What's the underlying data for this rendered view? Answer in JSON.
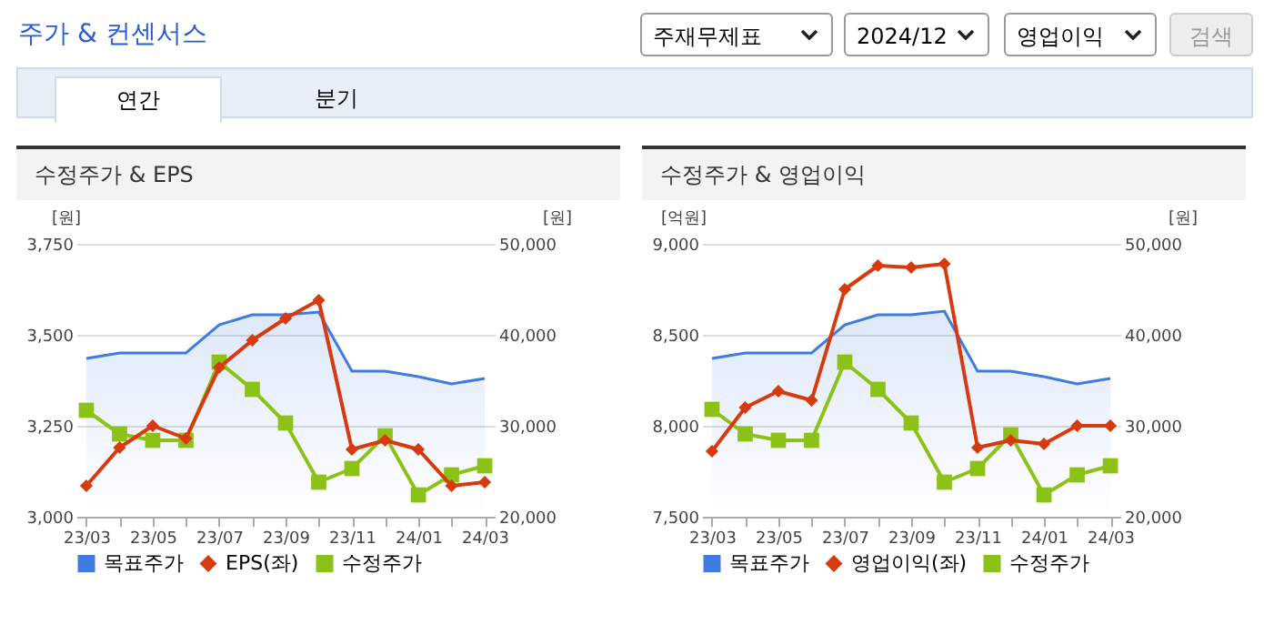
{
  "chart_data": [
    {
      "type": "other",
      "title": "주가 & 컨센서스",
      "annotations": [
        "주재무제표",
        "2024/12",
        "영업이익",
        "검색",
        "연간",
        "분기"
      ]
    },
    {
      "type": "line",
      "title": "수정주가 & EPS",
      "ylabel": "[원]",
      "y2label": "[원]",
      "categories": [
        "23/03",
        null,
        "23/05",
        null,
        "23/07",
        null,
        "23/09",
        null,
        "23/11",
        null,
        "24/01",
        null,
        "24/03"
      ],
      "ylim": [
        3000,
        3750
      ],
      "yticks": [
        {
          "value": 3000,
          "label": "3,000"
        },
        {
          "value": 3250,
          "label": "3,250"
        },
        {
          "value": 3500,
          "label": "3,500"
        },
        {
          "value": 3750,
          "label": "3,750"
        }
      ],
      "y2lim": [
        20000,
        50000
      ],
      "y2ticks": [
        {
          "value": 20000,
          "label": "20,000"
        },
        {
          "value": 30000,
          "label": "30,000"
        },
        {
          "value": 40000,
          "label": "40,000"
        },
        {
          "value": 50000,
          "label": "50,000"
        }
      ],
      "grid": "y",
      "legend": "bottom",
      "series": [
        {
          "name": "목표주가",
          "type": "area",
          "axis": "y2",
          "color": "#3f7be0",
          "values": [
            37400,
            38000,
            38000,
            38000,
            41100,
            42200,
            42200,
            42500,
            36000,
            36000,
            35400,
            34600,
            35200
          ]
        },
        {
          "name": "EPS(좌)",
          "type": "line",
          "color": "#d63a0e",
          "marker": "diamond",
          "values": [
            3085,
            3190,
            3250,
            3215,
            3410,
            3485,
            3545,
            3595,
            3185,
            3210,
            3185,
            3085,
            3095
          ]
        },
        {
          "name": "수정주가",
          "type": "line",
          "axis": "y2",
          "color": "#8cc218",
          "marker": "square",
          "values": [
            31700,
            29100,
            28400,
            28400,
            37000,
            34000,
            30300,
            23800,
            25300,
            28900,
            22400,
            24600,
            25600
          ]
        }
      ]
    },
    {
      "type": "line",
      "title": "수정주가 & 영업이익",
      "ylabel": "[억원]",
      "y2label": "[원]",
      "categories": [
        "23/03",
        null,
        "23/05",
        null,
        "23/07",
        null,
        "23/09",
        null,
        "23/11",
        null,
        "24/01",
        null,
        "24/03"
      ],
      "ylim": [
        7500,
        9000
      ],
      "yticks": [
        {
          "value": 7500,
          "label": "7,500"
        },
        {
          "value": 8000,
          "label": "8,000"
        },
        {
          "value": 8500,
          "label": "8,500"
        },
        {
          "value": 9000,
          "label": "9,000"
        }
      ],
      "y2lim": [
        20000,
        50000
      ],
      "y2ticks": [
        {
          "value": 20000,
          "label": "20,000"
        },
        {
          "value": 30000,
          "label": "30,000"
        },
        {
          "value": 40000,
          "label": "40,000"
        },
        {
          "value": 50000,
          "label": "50,000"
        }
      ],
      "grid": "y",
      "legend": "bottom",
      "series": [
        {
          "name": "목표주가",
          "type": "area",
          "axis": "y2",
          "color": "#3f7be0",
          "values": [
            37400,
            38000,
            38000,
            38000,
            41100,
            42200,
            42200,
            42600,
            36000,
            36000,
            35400,
            34600,
            35200
          ]
        },
        {
          "name": "영업이익(좌)",
          "type": "line",
          "color": "#d63a0e",
          "marker": "diamond",
          "values": [
            7860,
            8100,
            8190,
            8140,
            8750,
            8880,
            8870,
            8890,
            7880,
            7920,
            7900,
            8000,
            8000
          ]
        },
        {
          "name": "수정주가",
          "type": "line",
          "axis": "y2",
          "color": "#8cc218",
          "marker": "square",
          "values": [
            31800,
            29100,
            28400,
            28400,
            37000,
            34000,
            30300,
            23800,
            25300,
            29000,
            22400,
            24600,
            25600
          ]
        }
      ]
    }
  ]
}
